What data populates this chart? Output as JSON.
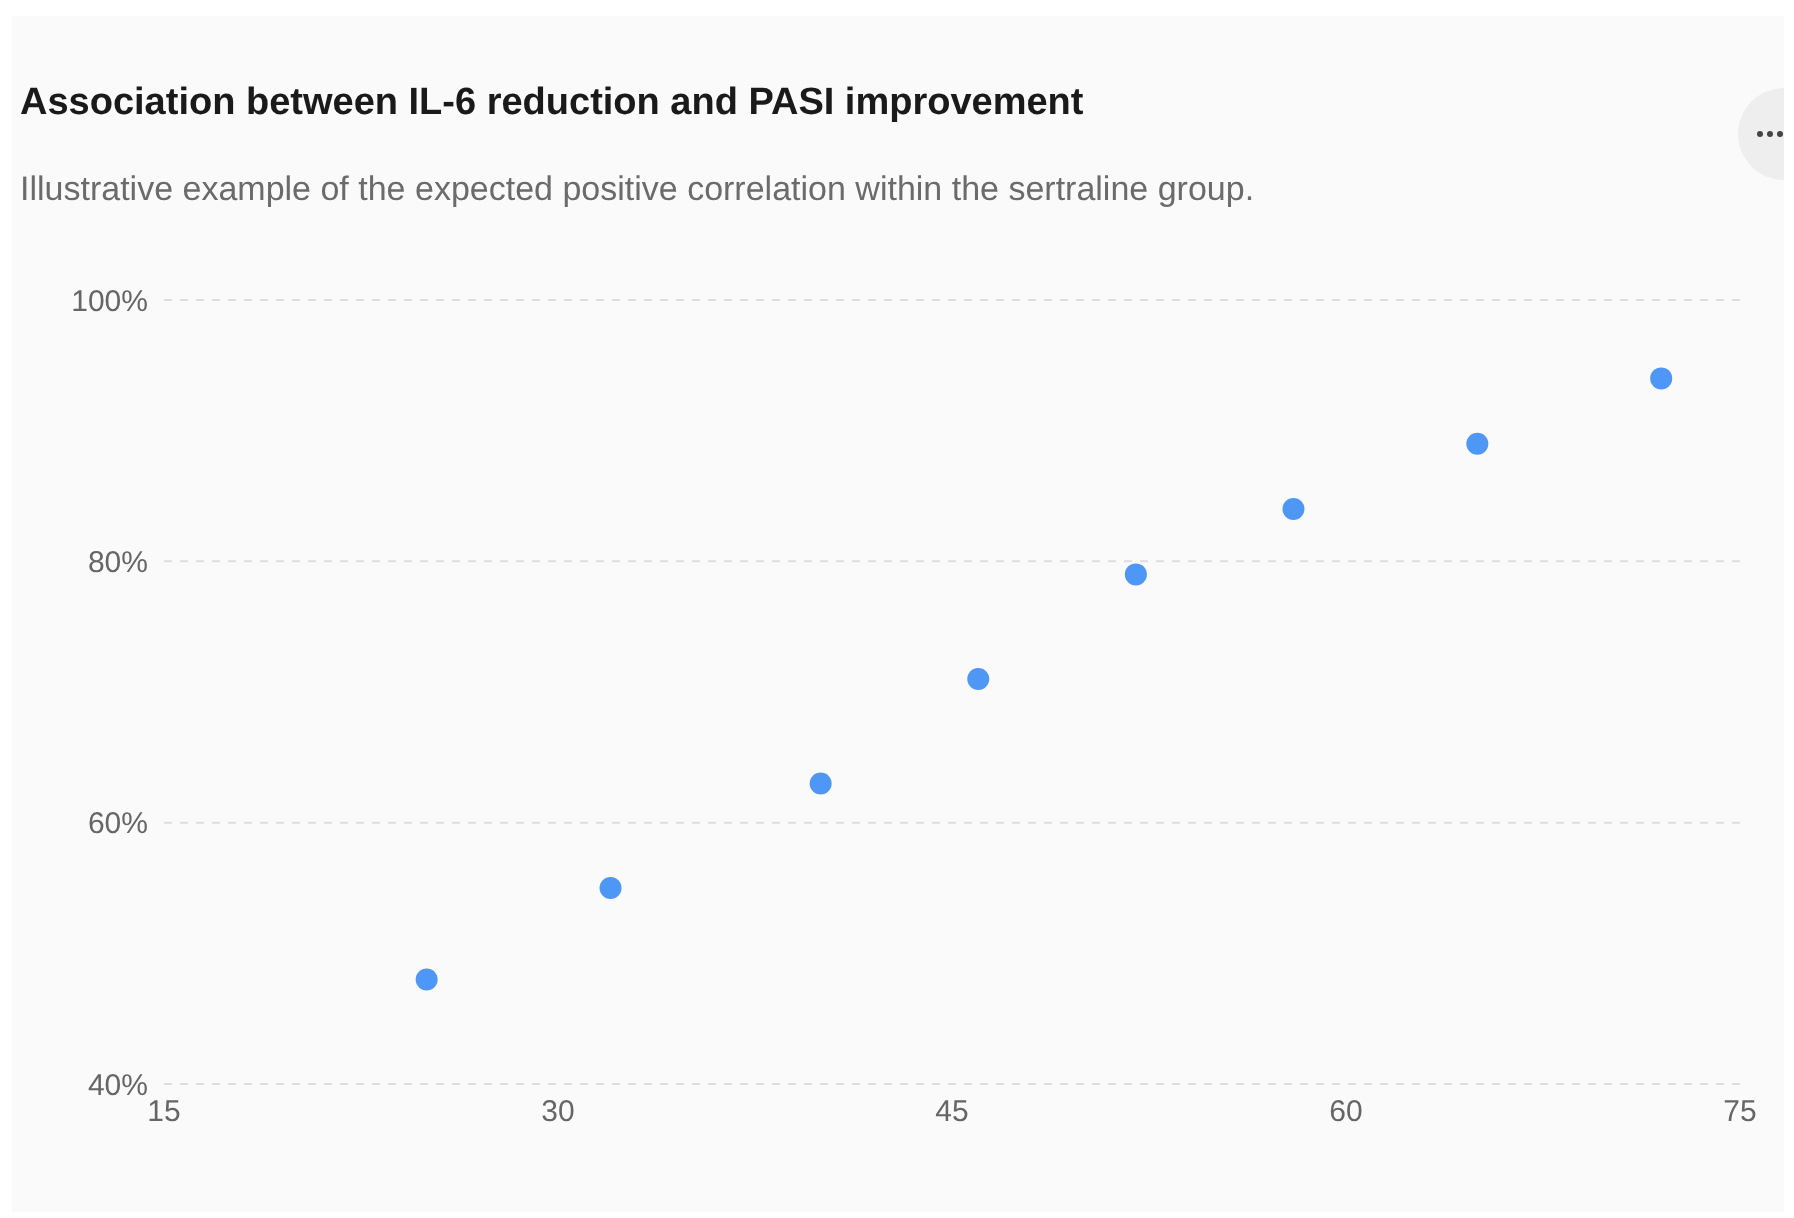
{
  "chart_data": {
    "type": "scatter",
    "title": "Association between IL-6 reduction and PASI improvement",
    "subtitle": "Illustrative example of the expected positive correlation within the sertraline group.",
    "x": [
      25,
      32,
      40,
      46,
      52,
      58,
      65,
      72
    ],
    "series": [
      {
        "color": "#4e97f5",
        "values": [
          48,
          55,
          63,
          71,
          79,
          84,
          89,
          94
        ]
      }
    ],
    "xlim": [
      15,
      75
    ],
    "xticks": [
      15,
      30,
      45,
      60,
      75
    ],
    "ylim": [
      40,
      100
    ],
    "yticks": [
      {
        "value": 40,
        "label": "40%"
      },
      {
        "value": 60,
        "label": "60%"
      },
      {
        "value": 80,
        "label": "80%"
      },
      {
        "value": 100,
        "label": "100%"
      }
    ],
    "grid": "y",
    "marker": "circle"
  }
}
